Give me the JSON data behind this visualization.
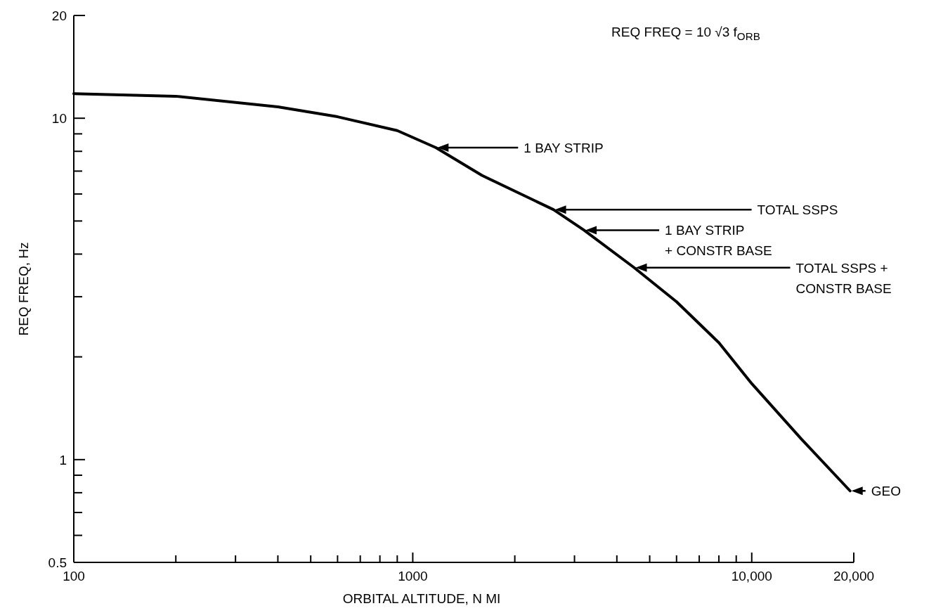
{
  "chart_data": {
    "type": "line",
    "xlabel": "ORBITAL ALTITUDE, N MI",
    "ylabel": "REQ FREQ, Hz",
    "log": "xy",
    "grid": false,
    "marker": "none",
    "line_style": "solid",
    "xlim": [
      100,
      20000
    ],
    "ylim": [
      0.5,
      20
    ],
    "xticks": [
      100,
      {
        "value": 200,
        "label": null
      },
      {
        "value": 300,
        "label": null
      },
      {
        "value": 400,
        "label": null
      },
      {
        "value": 500,
        "label": null
      },
      {
        "value": 600,
        "label": null
      },
      {
        "value": 700,
        "label": null
      },
      {
        "value": 800,
        "label": null
      },
      {
        "value": 900,
        "label": null
      },
      1000,
      {
        "value": 2000,
        "label": null
      },
      {
        "value": 3000,
        "label": null
      },
      {
        "value": 4000,
        "label": null
      },
      {
        "value": 5000,
        "label": null
      },
      {
        "value": 6000,
        "label": null
      },
      {
        "value": 7000,
        "label": null
      },
      {
        "value": 8000,
        "label": null
      },
      {
        "value": 9000,
        "label": null
      },
      {
        "value": 10000,
        "label": "10,000"
      },
      {
        "value": 20000,
        "label": "20,000"
      }
    ],
    "yticks": [
      0.5,
      {
        "value": 0.6,
        "label": null
      },
      {
        "value": 0.7,
        "label": null
      },
      {
        "value": 0.8,
        "label": null
      },
      {
        "value": 0.9,
        "label": null
      },
      1,
      {
        "value": 2,
        "label": null
      },
      {
        "value": 3,
        "label": null
      },
      {
        "value": 4,
        "label": null
      },
      {
        "value": 5,
        "label": null
      },
      {
        "value": 6,
        "label": null
      },
      {
        "value": 7,
        "label": null
      },
      {
        "value": 8,
        "label": null
      },
      {
        "value": 9,
        "label": null
      },
      10,
      20
    ],
    "series": [
      {
        "color": "#000000",
        "x": [
          100,
          200,
          400,
          600,
          900,
          1170,
          1600,
          2600,
          3200,
          4500,
          6000,
          8000,
          10000,
          14000,
          19500
        ],
        "values": [
          11.8,
          11.6,
          10.8,
          10.1,
          9.2,
          8.2,
          6.8,
          5.4,
          4.7,
          3.65,
          2.9,
          2.2,
          1.67,
          1.15,
          0.81
        ]
      }
    ],
    "annotations": [
      "REQ FREQ = 10 √3 f$_{ORB}$",
      {
        "text": "1 BAY STRIP",
        "x": 1170,
        "y": 8.2
      },
      {
        "text": "TOTAL SSPS",
        "x": 2600,
        "y": 5.4
      },
      {
        "text": "1 BAY STRIP\n+ CONSTR BASE",
        "x": 3200,
        "y": 4.7
      },
      {
        "text": "TOTAL SSPS +\nCONSTR BASE",
        "x": 4500,
        "y": 3.65
      },
      {
        "text": "GEO",
        "x": 19500,
        "y": 0.81
      }
    ]
  }
}
